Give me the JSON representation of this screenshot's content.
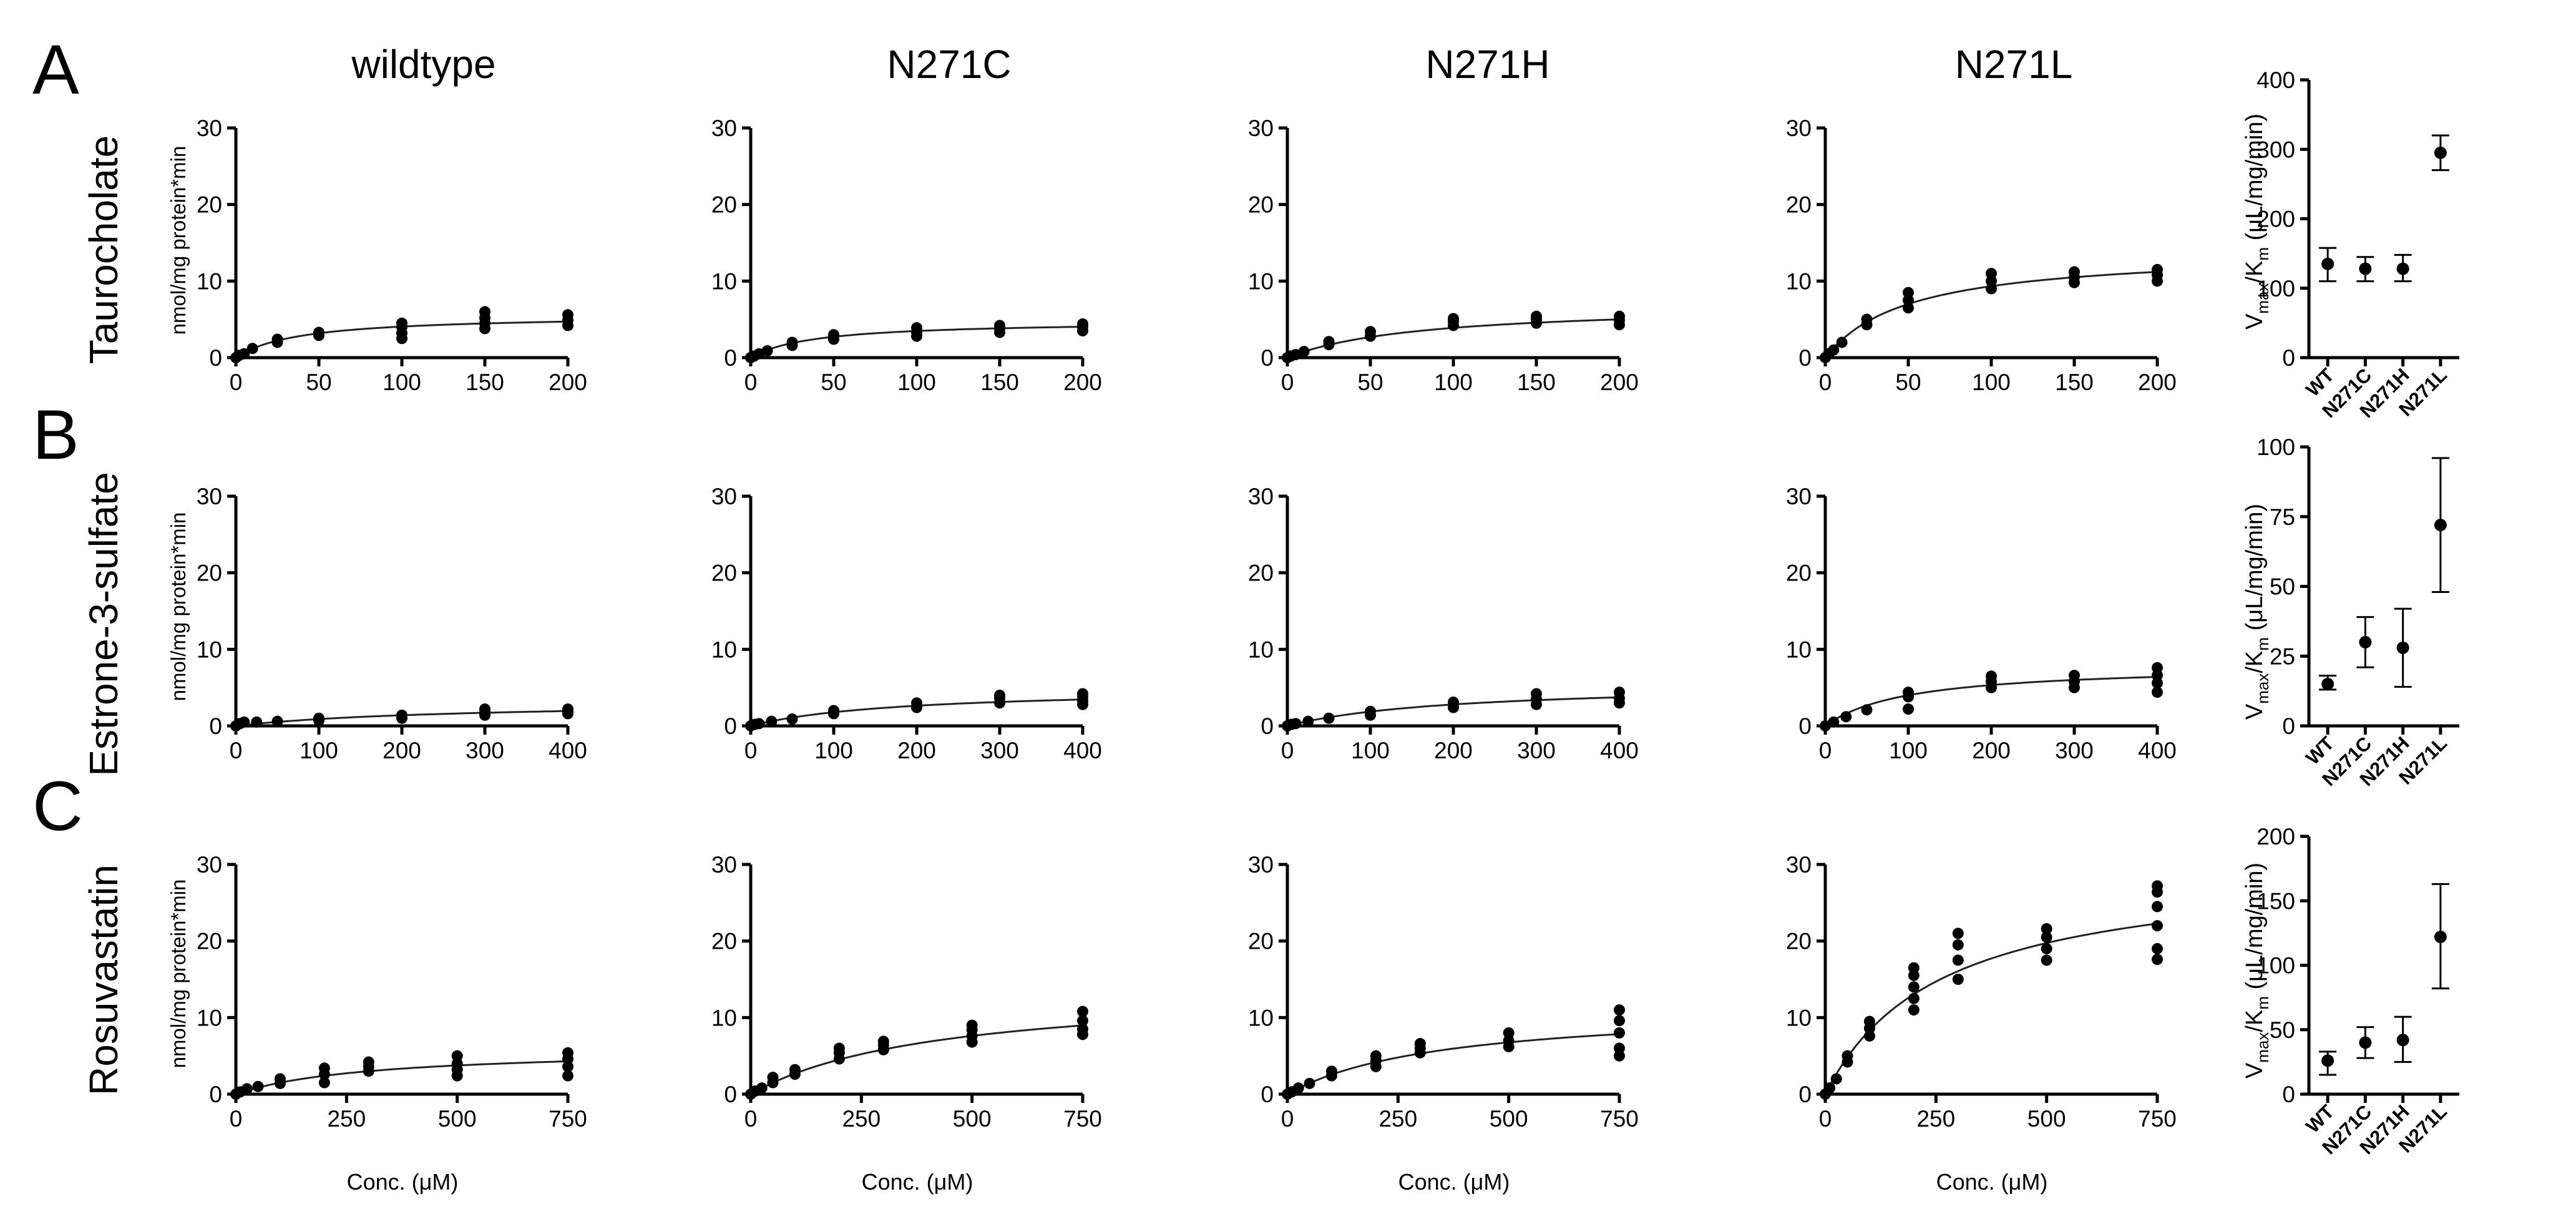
{
  "panel_letters": [
    "A",
    "B",
    "C"
  ],
  "column_titles": [
    "wildtype",
    "N271C",
    "N271H",
    "N271L"
  ],
  "row_labels": [
    "Taurocholate",
    "Estrone-3-sulfate",
    "Rosuvastatin"
  ],
  "kinetics_ylabel": "nmol/mg protein*min",
  "kinetics_xlabel": "Conc. (μM)",
  "ratio_ylabel": {
    "v": "V",
    "vsub": "max",
    "slash": "/K",
    "ksub": "m",
    "units": " (μL/mg/min)"
  },
  "colors": {
    "points": "#000000",
    "fit": "#222222",
    "axes": "#000000"
  },
  "chart_data": [
    {
      "type": "scatter",
      "row": "Taurocholate",
      "variant": "wildtype",
      "xlim": [
        0,
        200
      ],
      "ylim": [
        0,
        30
      ],
      "xticks": [
        0,
        50,
        100,
        150,
        200
      ],
      "yticks": [
        0,
        10,
        20,
        30
      ],
      "fit": {
        "vmax": 5.6,
        "km": 38
      },
      "points": [
        [
          0,
          0
        ],
        [
          2,
          0.3
        ],
        [
          5,
          0.5
        ],
        [
          10,
          1.2
        ],
        [
          25,
          2.0
        ],
        [
          25,
          2.4
        ],
        [
          50,
          2.9
        ],
        [
          50,
          3.3
        ],
        [
          100,
          2.5
        ],
        [
          100,
          3.2
        ],
        [
          100,
          4.0
        ],
        [
          100,
          4.5
        ],
        [
          150,
          3.8
        ],
        [
          150,
          4.5
        ],
        [
          150,
          5.2
        ],
        [
          150,
          6.0
        ],
        [
          200,
          4.2
        ],
        [
          200,
          4.9
        ],
        [
          200,
          5.6
        ]
      ]
    },
    {
      "type": "scatter",
      "row": "Taurocholate",
      "variant": "N271C",
      "xlim": [
        0,
        200
      ],
      "ylim": [
        0,
        30
      ],
      "xticks": [
        0,
        50,
        100,
        150,
        200
      ],
      "yticks": [
        0,
        10,
        20,
        30
      ],
      "fit": {
        "vmax": 4.8,
        "km": 38
      },
      "points": [
        [
          0,
          0
        ],
        [
          2,
          0.2
        ],
        [
          5,
          0.5
        ],
        [
          10,
          0.9
        ],
        [
          25,
          1.6
        ],
        [
          25,
          2.0
        ],
        [
          50,
          2.4
        ],
        [
          50,
          3.0
        ],
        [
          100,
          2.8
        ],
        [
          100,
          3.3
        ],
        [
          100,
          3.9
        ],
        [
          150,
          3.3
        ],
        [
          150,
          3.8
        ],
        [
          150,
          4.2
        ],
        [
          200,
          3.5
        ],
        [
          200,
          4.0
        ],
        [
          200,
          4.4
        ]
      ]
    },
    {
      "type": "scatter",
      "row": "Taurocholate",
      "variant": "N271H",
      "xlim": [
        0,
        200
      ],
      "ylim": [
        0,
        30
      ],
      "xticks": [
        0,
        50,
        100,
        150,
        200
      ],
      "yticks": [
        0,
        10,
        20,
        30
      ],
      "fit": {
        "vmax": 7.0,
        "km": 80
      },
      "points": [
        [
          0,
          0
        ],
        [
          2,
          0.2
        ],
        [
          5,
          0.4
        ],
        [
          10,
          0.8
        ],
        [
          25,
          1.7
        ],
        [
          25,
          2.1
        ],
        [
          50,
          2.8
        ],
        [
          50,
          3.4
        ],
        [
          100,
          4.2
        ],
        [
          100,
          4.7
        ],
        [
          100,
          5.1
        ],
        [
          150,
          4.5
        ],
        [
          150,
          5.0
        ],
        [
          150,
          5.4
        ],
        [
          200,
          4.3
        ],
        [
          200,
          4.9
        ],
        [
          200,
          5.4
        ]
      ]
    },
    {
      "type": "scatter",
      "row": "Taurocholate",
      "variant": "N271L",
      "xlim": [
        0,
        200
      ],
      "ylim": [
        0,
        30
      ],
      "xticks": [
        0,
        50,
        100,
        150,
        200
      ],
      "yticks": [
        0,
        10,
        20,
        30
      ],
      "fit": {
        "vmax": 14.0,
        "km": 50
      },
      "points": [
        [
          0,
          0
        ],
        [
          2,
          0.5
        ],
        [
          5,
          1.0
        ],
        [
          10,
          2.0
        ],
        [
          25,
          4.3
        ],
        [
          25,
          5.0
        ],
        [
          50,
          6.5
        ],
        [
          50,
          7.5
        ],
        [
          50,
          8.5
        ],
        [
          100,
          9.0
        ],
        [
          100,
          10.0
        ],
        [
          100,
          11.0
        ],
        [
          150,
          9.8
        ],
        [
          150,
          10.5
        ],
        [
          150,
          11.2
        ],
        [
          200,
          10.0
        ],
        [
          200,
          10.8
        ],
        [
          200,
          11.5
        ]
      ]
    },
    {
      "type": "scatter",
      "row": "Estrone-3-sulfate",
      "variant": "wildtype",
      "xlim": [
        0,
        400
      ],
      "ylim": [
        0,
        30
      ],
      "xticks": [
        0,
        100,
        200,
        300,
        400
      ],
      "yticks": [
        0,
        10,
        20,
        30
      ],
      "fit": {
        "vmax": 3.2,
        "km": 260
      },
      "points": [
        [
          0,
          0
        ],
        [
          5,
          0.3
        ],
        [
          10,
          0.5
        ],
        [
          25,
          0.5
        ],
        [
          50,
          0.6
        ],
        [
          100,
          0.7
        ],
        [
          100,
          1.0
        ],
        [
          200,
          1.0
        ],
        [
          200,
          1.4
        ],
        [
          300,
          1.4
        ],
        [
          300,
          1.8
        ],
        [
          300,
          2.2
        ],
        [
          400,
          1.6
        ],
        [
          400,
          1.9
        ],
        [
          400,
          2.2
        ]
      ]
    },
    {
      "type": "scatter",
      "row": "Estrone-3-sulfate",
      "variant": "N271C",
      "xlim": [
        0,
        400
      ],
      "ylim": [
        0,
        30
      ],
      "xticks": [
        0,
        100,
        200,
        300,
        400
      ],
      "yticks": [
        0,
        10,
        20,
        30
      ],
      "fit": {
        "vmax": 5.0,
        "km": 180
      },
      "points": [
        [
          0,
          0
        ],
        [
          5,
          0.2
        ],
        [
          10,
          0.3
        ],
        [
          25,
          0.6
        ],
        [
          50,
          0.9
        ],
        [
          100,
          1.6
        ],
        [
          100,
          2.0
        ],
        [
          200,
          2.4
        ],
        [
          200,
          3.0
        ],
        [
          300,
          3.0
        ],
        [
          300,
          3.6
        ],
        [
          300,
          4.0
        ],
        [
          400,
          2.8
        ],
        [
          400,
          3.3
        ],
        [
          400,
          3.8
        ],
        [
          400,
          4.2
        ]
      ]
    },
    {
      "type": "scatter",
      "row": "Estrone-3-sulfate",
      "variant": "N271H",
      "xlim": [
        0,
        400
      ],
      "ylim": [
        0,
        30
      ],
      "xticks": [
        0,
        100,
        200,
        300,
        400
      ],
      "yticks": [
        0,
        10,
        20,
        30
      ],
      "fit": {
        "vmax": 5.6,
        "km": 200
      },
      "points": [
        [
          0,
          0
        ],
        [
          5,
          0.2
        ],
        [
          10,
          0.3
        ],
        [
          25,
          0.6
        ],
        [
          50,
          1.0
        ],
        [
          100,
          1.4
        ],
        [
          100,
          1.9
        ],
        [
          200,
          2.4
        ],
        [
          200,
          3.1
        ],
        [
          300,
          2.8
        ],
        [
          300,
          3.5
        ],
        [
          300,
          4.2
        ],
        [
          400,
          3.0
        ],
        [
          400,
          3.6
        ],
        [
          400,
          4.4
        ]
      ]
    },
    {
      "type": "scatter",
      "row": "Estrone-3-sulfate",
      "variant": "N271L",
      "xlim": [
        0,
        400
      ],
      "ylim": [
        0,
        30
      ],
      "xticks": [
        0,
        100,
        200,
        300,
        400
      ],
      "yticks": [
        0,
        10,
        20,
        30
      ],
      "fit": {
        "vmax": 8.0,
        "km": 100
      },
      "points": [
        [
          0,
          0
        ],
        [
          10,
          0.5
        ],
        [
          25,
          1.2
        ],
        [
          50,
          2.1
        ],
        [
          100,
          2.2
        ],
        [
          100,
          3.8
        ],
        [
          100,
          4.4
        ],
        [
          200,
          5.0
        ],
        [
          200,
          5.8
        ],
        [
          200,
          6.5
        ],
        [
          300,
          5.0
        ],
        [
          300,
          5.8
        ],
        [
          300,
          6.6
        ],
        [
          400,
          4.4
        ],
        [
          400,
          5.6
        ],
        [
          400,
          6.6
        ],
        [
          400,
          7.6
        ]
      ]
    },
    {
      "type": "scatter",
      "row": "Rosuvastatin",
      "variant": "wildtype",
      "xlim": [
        0,
        750
      ],
      "ylim": [
        0,
        30
      ],
      "xticks": [
        0,
        250,
        500,
        750
      ],
      "yticks": [
        0,
        10,
        20,
        30
      ],
      "fit": {
        "vmax": 6.0,
        "km": 300
      },
      "points": [
        [
          0,
          0
        ],
        [
          10,
          0.3
        ],
        [
          25,
          0.7
        ],
        [
          50,
          1.0
        ],
        [
          100,
          1.4
        ],
        [
          100,
          2.0
        ],
        [
          200,
          1.5
        ],
        [
          200,
          2.6
        ],
        [
          200,
          3.4
        ],
        [
          300,
          3.0
        ],
        [
          300,
          3.6
        ],
        [
          300,
          4.2
        ],
        [
          500,
          2.4
        ],
        [
          500,
          3.2
        ],
        [
          500,
          4.0
        ],
        [
          500,
          5.0
        ],
        [
          750,
          2.4
        ],
        [
          750,
          3.6
        ],
        [
          750,
          4.6
        ],
        [
          750,
          5.4
        ]
      ]
    },
    {
      "type": "scatter",
      "row": "Rosuvastatin",
      "variant": "N271C",
      "xlim": [
        0,
        750
      ],
      "ylim": [
        0,
        30
      ],
      "xticks": [
        0,
        250,
        500,
        750
      ],
      "yticks": [
        0,
        10,
        20,
        30
      ],
      "fit": {
        "vmax": 14.0,
        "km": 420
      },
      "points": [
        [
          0,
          0
        ],
        [
          10,
          0.4
        ],
        [
          25,
          0.8
        ],
        [
          50,
          1.5
        ],
        [
          50,
          2.2
        ],
        [
          100,
          2.6
        ],
        [
          100,
          3.2
        ],
        [
          200,
          4.6
        ],
        [
          200,
          5.4
        ],
        [
          200,
          6.0
        ],
        [
          300,
          5.8
        ],
        [
          300,
          6.4
        ],
        [
          300,
          6.9
        ],
        [
          500,
          6.8
        ],
        [
          500,
          7.6
        ],
        [
          500,
          8.4
        ],
        [
          500,
          9.0
        ],
        [
          750,
          7.8
        ],
        [
          750,
          8.5
        ],
        [
          750,
          9.6
        ],
        [
          750,
          10.8
        ]
      ]
    },
    {
      "type": "scatter",
      "row": "Rosuvastatin",
      "variant": "N271H",
      "xlim": [
        0,
        750
      ],
      "ylim": [
        0,
        30
      ],
      "xticks": [
        0,
        250,
        500,
        750
      ],
      "yticks": [
        0,
        10,
        20,
        30
      ],
      "fit": {
        "vmax": 11.5,
        "km": 350
      },
      "points": [
        [
          0,
          0
        ],
        [
          10,
          0.3
        ],
        [
          25,
          0.8
        ],
        [
          50,
          1.4
        ],
        [
          100,
          2.4
        ],
        [
          100,
          3.0
        ],
        [
          200,
          3.6
        ],
        [
          200,
          4.4
        ],
        [
          200,
          5.0
        ],
        [
          300,
          5.4
        ],
        [
          300,
          6.0
        ],
        [
          300,
          6.6
        ],
        [
          500,
          6.2
        ],
        [
          500,
          7.0
        ],
        [
          500,
          8.0
        ],
        [
          750,
          5.0
        ],
        [
          750,
          6.0
        ],
        [
          750,
          8.0
        ],
        [
          750,
          9.6
        ],
        [
          750,
          11.0
        ]
      ]
    },
    {
      "type": "scatter",
      "row": "Rosuvastatin",
      "variant": "N271L",
      "xlim": [
        0,
        750
      ],
      "ylim": [
        0,
        30
      ],
      "xticks": [
        0,
        250,
        500,
        750
      ],
      "yticks": [
        0,
        10,
        20,
        30
      ],
      "fit": {
        "vmax": 30.0,
        "km": 260
      },
      "points": [
        [
          0,
          0
        ],
        [
          10,
          0.8
        ],
        [
          25,
          2.0
        ],
        [
          50,
          4.2
        ],
        [
          50,
          5.0
        ],
        [
          100,
          7.6
        ],
        [
          100,
          8.6
        ],
        [
          100,
          9.5
        ],
        [
          200,
          11.0
        ],
        [
          200,
          12.5
        ],
        [
          200,
          14.0
        ],
        [
          200,
          15.5
        ],
        [
          200,
          16.5
        ],
        [
          300,
          15.0
        ],
        [
          300,
          17.5
        ],
        [
          300,
          19.5
        ],
        [
          300,
          21.0
        ],
        [
          500,
          17.5
        ],
        [
          500,
          19.0
        ],
        [
          500,
          20.5
        ],
        [
          500,
          21.6
        ],
        [
          750,
          17.6
        ],
        [
          750,
          19.0
        ],
        [
          750,
          22.0
        ],
        [
          750,
          24.5
        ],
        [
          750,
          26.4
        ],
        [
          750,
          27.2
        ]
      ]
    },
    {
      "type": "scatter",
      "row": "Taurocholate",
      "variant": "ratio",
      "categories": [
        "WT",
        "N271C",
        "N271H",
        "N271L"
      ],
      "ylim": [
        0,
        400
      ],
      "yticks": [
        0,
        100,
        200,
        300,
        400
      ],
      "values": [
        135,
        128,
        128,
        295
      ],
      "errors": [
        [
          110,
          158
        ],
        [
          110,
          145
        ],
        [
          110,
          148
        ],
        [
          270,
          320
        ]
      ]
    },
    {
      "type": "scatter",
      "row": "Estrone-3-sulfate",
      "variant": "ratio",
      "categories": [
        "WT",
        "N271C",
        "N271H",
        "N271L"
      ],
      "ylim": [
        0,
        100
      ],
      "yticks": [
        0,
        25,
        50,
        75,
        100
      ],
      "values": [
        15,
        30,
        28,
        72
      ],
      "errors": [
        [
          13,
          18
        ],
        [
          21,
          39
        ],
        [
          14,
          42
        ],
        [
          48,
          96
        ]
      ]
    },
    {
      "type": "scatter",
      "row": "Rosuvastatin",
      "variant": "ratio",
      "categories": [
        "WT",
        "N271C",
        "N271H",
        "N271L"
      ],
      "ylim": [
        0,
        200
      ],
      "yticks": [
        0,
        50,
        100,
        150,
        200
      ],
      "values": [
        26,
        40,
        42,
        122
      ],
      "errors": [
        [
          15,
          33
        ],
        [
          28,
          52
        ],
        [
          25,
          60
        ],
        [
          82,
          163
        ]
      ]
    }
  ]
}
